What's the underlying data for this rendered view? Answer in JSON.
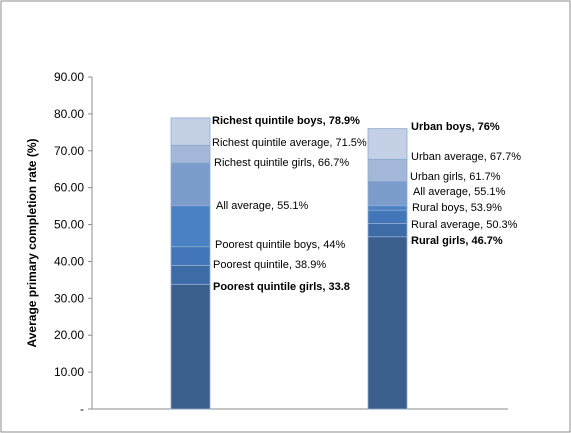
{
  "chart_data": {
    "type": "bar",
    "ylabel": "Average primary completion rate (%)",
    "ylim": [
      0,
      90
    ],
    "y_ticks": [
      "-",
      "10.00",
      "20.00",
      "30.00",
      "40.00",
      "50.00",
      "60.00",
      "70.00",
      "80.00",
      "90.00"
    ],
    "grid": false,
    "legend": "none",
    "bars": [
      {
        "segments": [
          {
            "value": 33.8,
            "label": "Poorest quintile girls, 33.8",
            "bold": true,
            "color": "#3a5f8c"
          },
          {
            "value": 38.9,
            "label": "Poorest quintile, 38.9%",
            "bold": false,
            "color": "#3d6ba6"
          },
          {
            "value": 44,
            "label": "Poorest quintile boys, 44%",
            "bold": false,
            "color": "#4376b8"
          },
          {
            "value": 55.1,
            "label": "All average, 55.1%",
            "bold": false,
            "color": "#4a80c4"
          },
          {
            "value": 66.7,
            "label": "Richest  quintile girls, 66.7%",
            "bold": false,
            "color": "#7c9dcc"
          },
          {
            "value": 71.5,
            "label": "Richest quintile average, 71.5%",
            "bold": false,
            "color": "#a3b8d9"
          },
          {
            "value": 78.9,
            "label": "Richest quintile boys, 78.9%",
            "bold": true,
            "color": "#c4d0e6"
          }
        ]
      },
      {
        "segments": [
          {
            "value": 46.7,
            "label": "Rural girls, 46.7%",
            "bold": true,
            "color": "#3a5f8c"
          },
          {
            "value": 50.3,
            "label": "Rural average, 50.3%",
            "bold": false,
            "color": "#3d6ba6"
          },
          {
            "value": 53.9,
            "label": "Rural boys, 53.9%",
            "bold": false,
            "color": "#4376b8"
          },
          {
            "value": 55.1,
            "label": "All average, 55.1%",
            "bold": false,
            "color": "#4a80c4"
          },
          {
            "value": 61.7,
            "label": "Urban girls, 61.7%",
            "bold": false,
            "color": "#7c9dcc"
          },
          {
            "value": 67.7,
            "label": "Urban average, 67.7%",
            "bold": false,
            "color": "#a3b8d9"
          },
          {
            "value": 76,
            "label": "Urban boys, 76%",
            "bold": true,
            "color": "#c4d0e6"
          }
        ]
      }
    ]
  }
}
